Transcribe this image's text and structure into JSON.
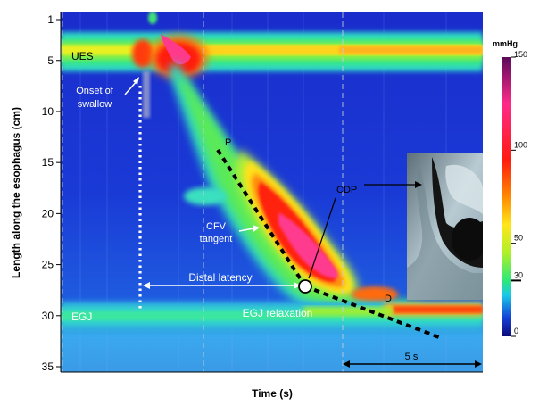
{
  "chart_data": {
    "type": "heatmap",
    "title": "",
    "xlabel": "Time (s)",
    "ylabel": "Length along the esophagus (cm)",
    "ylim": [
      35,
      0
    ],
    "y_ticks": [
      1,
      5,
      10,
      15,
      20,
      25,
      30,
      35
    ],
    "y_tick_labels": [
      "1",
      "5",
      "10",
      "15",
      "20",
      "25",
      "30",
      "35"
    ],
    "colorbar": {
      "title": "mmHg",
      "ticks": [
        150,
        100,
        50,
        30,
        0
      ],
      "tick_labels": [
        "150",
        "100",
        "50",
        "30",
        "0"
      ],
      "stops": [
        {
          "value": 0,
          "color": "#0a0a78"
        },
        {
          "value": 10,
          "color": "#1540d8"
        },
        {
          "value": 22,
          "color": "#18c8e8"
        },
        {
          "value": 30,
          "color": "#2ee87a"
        },
        {
          "value": 45,
          "color": "#b0f028"
        },
        {
          "value": 60,
          "color": "#ffe61a"
        },
        {
          "value": 75,
          "color": "#ff8a00"
        },
        {
          "value": 95,
          "color": "#ff1a10"
        },
        {
          "value": 125,
          "color": "#ff2a8a"
        },
        {
          "value": 150,
          "color": "#5a0a5a"
        }
      ]
    },
    "time_scale": {
      "label": "5 s",
      "seconds": 5
    },
    "annotations": {
      "ues": "UES",
      "egj": "EGJ",
      "onset": [
        "Onset of",
        "swallow"
      ],
      "p": "P",
      "d": "D",
      "cdp": "CDP",
      "cfv": [
        "CFV",
        "tangent"
      ],
      "distal_latency": "Distal latency",
      "egj_relaxation": "EGJ relaxation"
    }
  }
}
